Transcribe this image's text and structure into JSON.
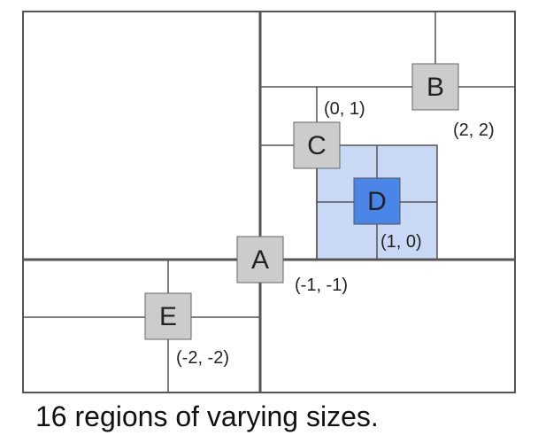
{
  "colors": {
    "line": "#555555",
    "node_fill": "#cccccc",
    "node_stroke": "#666666",
    "highlight_region": "#c9d9f5",
    "highlight_node": "#4a86e8"
  },
  "nodes": {
    "A": {
      "letter": "A",
      "coord": "(-1, -1)"
    },
    "B": {
      "letter": "B",
      "coord": "(2, 2)"
    },
    "C": {
      "letter": "C",
      "coord": "(0, 1)"
    },
    "D": {
      "letter": "D",
      "coord": "(1, 0)"
    },
    "E": {
      "letter": "E",
      "coord": "(-2, -2)"
    }
  },
  "caption": "16 regions of varying sizes."
}
